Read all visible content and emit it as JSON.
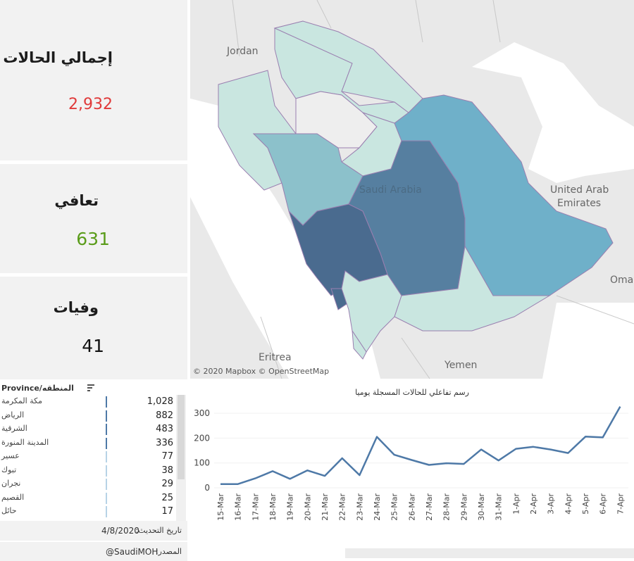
{
  "kpis": {
    "total": {
      "label": "إجمالي الحالات",
      "value": "2,932"
    },
    "recovered": {
      "label": "تعافي",
      "value": "631"
    },
    "deaths": {
      "label": "وفيات",
      "value": "41"
    }
  },
  "map": {
    "labels": {
      "jordan": "Jordan",
      "saudi": "Saudi Arabia",
      "uae_line1": "United Arab",
      "uae_line2": "Emirates",
      "oman": "Oma",
      "eritrea": "Eritrea",
      "yemen": "Yemen"
    },
    "attribution": "© 2020 Mapbox © OpenStreetMap"
  },
  "table": {
    "header_province": "Province/المنطقه",
    "rows": [
      {
        "name": "مكة المكرمة",
        "value": "1,028",
        "num": 1028
      },
      {
        "name": "الرياض",
        "value": "882",
        "num": 882
      },
      {
        "name": "الشرقية",
        "value": "483",
        "num": 483
      },
      {
        "name": "المدينة المنورة",
        "value": "336",
        "num": 336
      },
      {
        "name": "عسير",
        "value": "77",
        "num": 77
      },
      {
        "name": "تبوك",
        "value": "38",
        "num": 38
      },
      {
        "name": "نجران",
        "value": "29",
        "num": 29
      },
      {
        "name": "القصيم",
        "value": "25",
        "num": 25
      },
      {
        "name": "حائل",
        "value": "17",
        "num": 17
      }
    ]
  },
  "footer": {
    "update_label": "تاريخ التحديث:",
    "update_value": "4/8/2020",
    "source_label": "المصدر:",
    "source_value": "@SaudiMOH"
  },
  "colors": {
    "accent_line": "#4e79a7",
    "total_value": "#e03a3a",
    "recovered_value": "#5a9c1a"
  },
  "chart_data": {
    "type": "line",
    "title": "رسم تفاعلي للحالات المسجلة يوميا",
    "categories": [
      "15-Mar",
      "16-Mar",
      "17-Mar",
      "18-Mar",
      "19-Mar",
      "20-Mar",
      "21-Mar",
      "22-Mar",
      "23-Mar",
      "24-Mar",
      "25-Mar",
      "26-Mar",
      "27-Mar",
      "28-Mar",
      "29-Mar",
      "30-Mar",
      "31-Mar",
      "1-Apr",
      "2-Apr",
      "3-Apr",
      "4-Apr",
      "5-Apr",
      "6-Apr",
      "7-Apr"
    ],
    "values": [
      15,
      15,
      38,
      67,
      36,
      70,
      48,
      119,
      51,
      205,
      133,
      112,
      92,
      99,
      96,
      154,
      110,
      157,
      165,
      154,
      140,
      206,
      203,
      327
    ],
    "yticks": [
      0,
      100,
      200,
      300
    ],
    "ylim": [
      0,
      340
    ],
    "xlabel": "",
    "ylabel": ""
  }
}
